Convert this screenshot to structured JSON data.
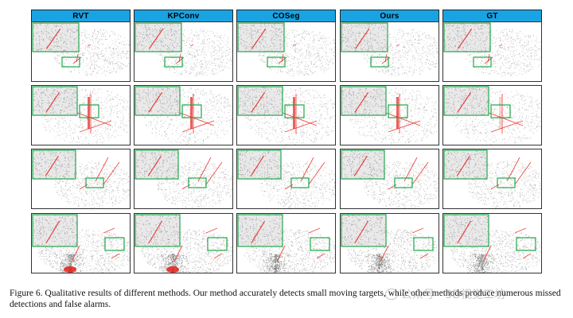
{
  "columns": [
    {
      "label": "RVT",
      "key": "rvt"
    },
    {
      "label": "KPConv",
      "key": "kpconv"
    },
    {
      "label": "COSeg",
      "key": "coseg"
    },
    {
      "label": "Ours",
      "key": "ours"
    },
    {
      "label": "GT",
      "key": "gt"
    }
  ],
  "rows": 4,
  "colors": {
    "header_bg": "#1aa3e3",
    "highlight_box": "#1ea84a",
    "points": "#9a9a9a",
    "targets": "#e8201a"
  },
  "caption": "Figure 6.  Qualitative results of different methods.  Our method accurately detects small moving targets, while other methods produce numerous missed detections and false alarms.",
  "watermark": "公众号 · 3D视觉工坊"
}
